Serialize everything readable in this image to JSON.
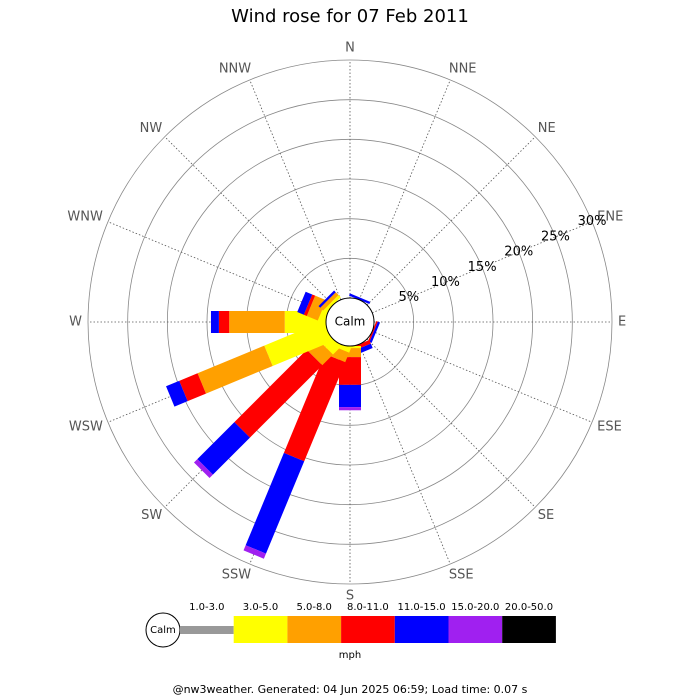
{
  "chart_data": {
    "type": "windrose",
    "title": "Wind rose for 07 Feb 2011",
    "directions": [
      "N",
      "NNE",
      "NE",
      "ENE",
      "E",
      "ESE",
      "SE",
      "SSE",
      "S",
      "SSW",
      "SW",
      "WSW",
      "W",
      "WNW",
      "NW",
      "NNW"
    ],
    "calm_label": "Calm",
    "unit": "mph",
    "rlim": [
      0,
      30
    ],
    "rticks": [
      {
        "value": 5,
        "label": "5%"
      },
      {
        "value": 10,
        "label": "10%"
      },
      {
        "value": 15,
        "label": "15%"
      },
      {
        "value": 20,
        "label": "20%"
      },
      {
        "value": 25,
        "label": "25%"
      },
      {
        "value": 30,
        "label": "30%"
      }
    ],
    "series": [
      {
        "name": "1.0-3.0",
        "color": "#999999",
        "values": [
          0,
          0,
          0,
          0,
          0,
          0,
          0,
          0,
          0,
          0,
          0,
          0,
          0,
          0,
          0,
          0
        ]
      },
      {
        "name": "3.0-5.0",
        "color": "#ffff00",
        "values": [
          0,
          0,
          0,
          0,
          0,
          0,
          0,
          0,
          0.3,
          0.6,
          1.4,
          8.1,
          5.2,
          0.8,
          0.4,
          0
        ]
      },
      {
        "name": "5.0-8.0",
        "color": "#ffa000",
        "values": [
          0,
          0,
          0,
          0,
          0,
          0,
          0,
          0,
          1.1,
          1.3,
          1.9,
          9.1,
          7.0,
          1.5,
          0.5,
          0
        ]
      },
      {
        "name": "8.0-11.0",
        "color": "#ff0000",
        "values": [
          0,
          0,
          0,
          0,
          0,
          0.2,
          0,
          0.5,
          3.5,
          13.5,
          12.9,
          2.5,
          1.3,
          0.4,
          0,
          0
        ]
      },
      {
        "name": "11.0-15.0",
        "color": "#0000ff",
        "values": [
          0,
          0.3,
          0,
          0,
          0,
          0.3,
          0,
          0.6,
          2.8,
          12.6,
          6.6,
          1.8,
          1.0,
          0.9,
          0.3,
          0
        ]
      },
      {
        "name": "15.0-20.0",
        "color": "#a020f0",
        "values": [
          0,
          0,
          0,
          0,
          0,
          0,
          0,
          0,
          0.4,
          0.7,
          0.6,
          0,
          0,
          0,
          0,
          0
        ]
      },
      {
        "name": "20.0-50.0",
        "color": "#000000",
        "values": [
          0,
          0,
          0,
          0,
          0,
          0,
          0,
          0,
          0,
          0,
          0,
          0,
          0,
          0,
          0,
          0
        ]
      }
    ],
    "footer": "@nw3weather. Generated: 04 Jun 2025 06:59; Load time: 0.07 s"
  }
}
